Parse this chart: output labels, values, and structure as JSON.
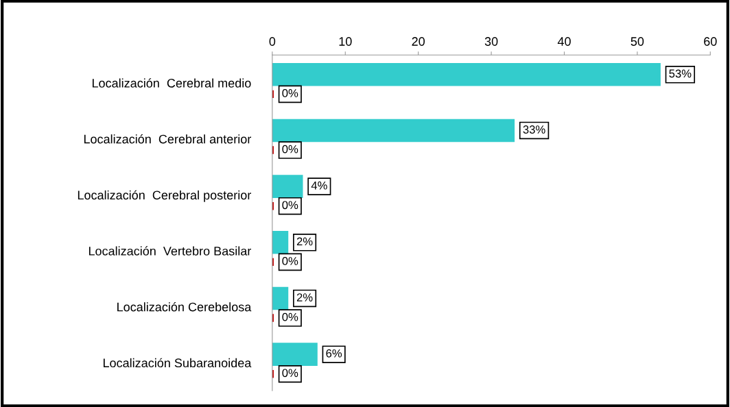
{
  "chart_data": {
    "type": "bar",
    "orientation": "horizontal",
    "categories": [
      "Localización  Cerebral medio",
      "Localización  Cerebral anterior",
      "Localización  Cerebral posterior",
      "Localización  Vertebro Basilar",
      "Localización Cerebelosa",
      "Localización Subaranoidea"
    ],
    "series": [
      {
        "color": "#33cccc",
        "values": [
          53,
          33,
          4,
          2,
          2,
          6
        ],
        "value_labels": [
          "53%",
          "33%",
          "4%",
          "2%",
          "2%",
          "6%"
        ]
      },
      {
        "color": "#c00000",
        "values": [
          0,
          0,
          0,
          0,
          0,
          0
        ],
        "value_labels": [
          "0%",
          "0%",
          "0%",
          "0%",
          "0%",
          "0%"
        ]
      }
    ],
    "xlim": [
      0,
      60
    ],
    "xticks": [
      0,
      10,
      20,
      30,
      40,
      50,
      60
    ],
    "grid": false
  }
}
